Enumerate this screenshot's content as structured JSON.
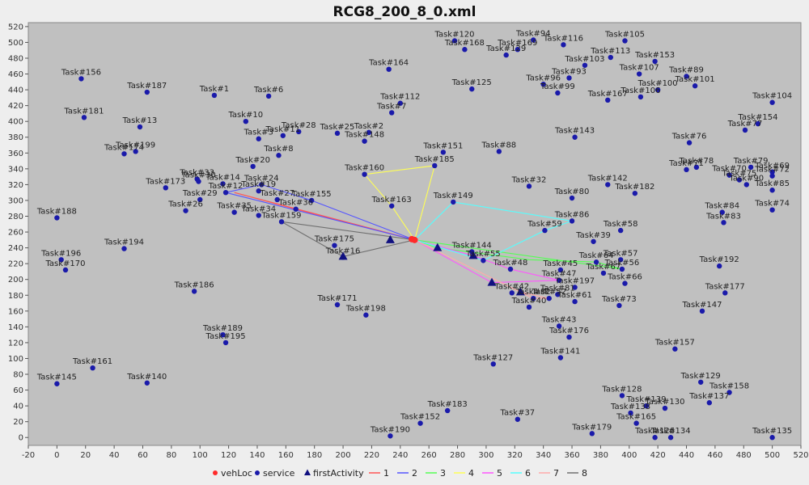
{
  "chart_data": {
    "type": "scatter",
    "title": "RCG8_200_8_0.xml",
    "xlabel": "",
    "ylabel": "",
    "xlim": [
      -20,
      520
    ],
    "ylim": [
      -10,
      525
    ],
    "x_ticks": [
      -20,
      0,
      20,
      40,
      60,
      80,
      100,
      120,
      140,
      160,
      180,
      200,
      220,
      240,
      260,
      280,
      300,
      320,
      340,
      360,
      380,
      400,
      420,
      440,
      460,
      480,
      500,
      520
    ],
    "y_ticks": [
      0,
      20,
      40,
      60,
      80,
      100,
      120,
      140,
      160,
      180,
      200,
      220,
      240,
      260,
      280,
      300,
      320,
      340,
      360,
      380,
      400,
      420,
      440,
      460,
      480,
      500,
      520
    ],
    "grid": false,
    "legend_position": "bottom",
    "background": "#c0c0c0",
    "colors": {
      "vehLoc": "#ff2a2a",
      "service": "#1a1aaa",
      "firstActivity": "#101080",
      "1": "#ff5555",
      "2": "#5555ff",
      "3": "#55ff55",
      "4": "#ffff55",
      "5": "#ff55ff",
      "6": "#55ffff",
      "7": "#ffaaaa",
      "8": "#707070"
    },
    "legend": [
      {
        "label": "vehLoc",
        "marker": "circle-red"
      },
      {
        "label": "service",
        "marker": "circle-blue"
      },
      {
        "label": "firstActivity",
        "marker": "triangle"
      },
      {
        "label": "1",
        "marker": "line"
      },
      {
        "label": "2",
        "marker": "line"
      },
      {
        "label": "3",
        "marker": "line"
      },
      {
        "label": "4",
        "marker": "line"
      },
      {
        "label": "5",
        "marker": "line"
      },
      {
        "label": "6",
        "marker": "line"
      },
      {
        "label": "7",
        "marker": "line"
      },
      {
        "label": "8",
        "marker": "line"
      }
    ],
    "vehLoc": [
      [
        248,
        251
      ],
      [
        250,
        250
      ]
    ],
    "firstActivity": [
      [
        233,
        250
      ],
      [
        266,
        240
      ],
      [
        291,
        230
      ],
      [
        304,
        196
      ],
      [
        324,
        184
      ],
      [
        200,
        229
      ]
    ],
    "services": [
      {
        "label": "Task#120",
        "x": 278,
        "y": 502
      },
      {
        "label": "Task#94",
        "x": 333,
        "y": 503
      },
      {
        "label": "Task#116",
        "x": 354,
        "y": 497
      },
      {
        "label": "Task#105",
        "x": 397,
        "y": 502
      },
      {
        "label": "Task#168",
        "x": 285,
        "y": 491
      },
      {
        "label": "Task#169",
        "x": 322,
        "y": 491
      },
      {
        "label": "Task#129",
        "x": 314,
        "y": 484
      },
      {
        "label": "Task#113",
        "x": 387,
        "y": 481
      },
      {
        "label": "Task#153",
        "x": 418,
        "y": 476
      },
      {
        "label": "Task#164",
        "x": 232,
        "y": 466
      },
      {
        "label": "Task#103",
        "x": 369,
        "y": 471
      },
      {
        "label": "Task#107",
        "x": 407,
        "y": 460
      },
      {
        "label": "Task#89",
        "x": 440,
        "y": 457
      },
      {
        "label": "Task#93",
        "x": 358,
        "y": 455
      },
      {
        "label": "Task#96",
        "x": 340,
        "y": 447
      },
      {
        "label": "Task#101",
        "x": 446,
        "y": 445
      },
      {
        "label": "Task#125",
        "x": 290,
        "y": 441
      },
      {
        "label": "Task#99",
        "x": 350,
        "y": 436
      },
      {
        "label": "Task#100",
        "x": 420,
        "y": 440
      },
      {
        "label": "Task#106",
        "x": 408,
        "y": 431
      },
      {
        "label": "Task#167",
        "x": 385,
        "y": 427
      },
      {
        "label": "Task#104",
        "x": 500,
        "y": 424
      },
      {
        "label": "Task#156",
        "x": 17,
        "y": 454
      },
      {
        "label": "Task#187",
        "x": 63,
        "y": 437
      },
      {
        "label": "Task#1",
        "x": 110,
        "y": 433
      },
      {
        "label": "Task#6",
        "x": 148,
        "y": 432
      },
      {
        "label": "Task#112",
        "x": 240,
        "y": 423
      },
      {
        "label": "Task#7",
        "x": 234,
        "y": 411
      },
      {
        "label": "Task#181",
        "x": 19,
        "y": 405
      },
      {
        "label": "Task#10",
        "x": 132,
        "y": 400
      },
      {
        "label": "Task#154",
        "x": 490,
        "y": 397
      },
      {
        "label": "Task#13",
        "x": 58,
        "y": 393
      },
      {
        "label": "Task#77",
        "x": 481,
        "y": 389
      },
      {
        "label": "Task#2",
        "x": 218,
        "y": 386
      },
      {
        "label": "Task#28",
        "x": 169,
        "y": 387
      },
      {
        "label": "Task#25",
        "x": 196,
        "y": 385
      },
      {
        "label": "Task#11",
        "x": 158,
        "y": 382
      },
      {
        "label": "Task#143",
        "x": 362,
        "y": 380
      },
      {
        "label": "Task#3",
        "x": 141,
        "y": 378
      },
      {
        "label": "Task#148",
        "x": 215,
        "y": 375
      },
      {
        "label": "Task#76",
        "x": 442,
        "y": 373
      },
      {
        "label": "Task#199",
        "x": 55,
        "y": 362
      },
      {
        "label": "Task#174",
        "x": 47,
        "y": 359
      },
      {
        "label": "Task#151",
        "x": 270,
        "y": 361
      },
      {
        "label": "Task#88",
        "x": 309,
        "y": 362
      },
      {
        "label": "Task#8",
        "x": 155,
        "y": 357
      },
      {
        "label": "Task#20",
        "x": 137,
        "y": 343
      },
      {
        "label": "Task#185",
        "x": 264,
        "y": 344
      },
      {
        "label": "Task#78",
        "x": 447,
        "y": 342
      },
      {
        "label": "Task#79",
        "x": 485,
        "y": 342
      },
      {
        "label": "Task#71",
        "x": 440,
        "y": 339
      },
      {
        "label": "Task#70",
        "x": 470,
        "y": 332
      },
      {
        "label": "Task#69",
        "x": 500,
        "y": 336
      },
      {
        "label": "Task#160",
        "x": 215,
        "y": 333
      },
      {
        "label": "Task#33",
        "x": 98,
        "y": 327
      },
      {
        "label": "Task#72",
        "x": 500,
        "y": 331
      },
      {
        "label": "Task#75",
        "x": 477,
        "y": 326
      },
      {
        "label": "Task#14",
        "x": 116,
        "y": 321
      },
      {
        "label": "Task#24",
        "x": 143,
        "y": 320
      },
      {
        "label": "Task#30",
        "x": 99,
        "y": 324
      },
      {
        "label": "Task#173",
        "x": 76,
        "y": 316
      },
      {
        "label": "Task#32",
        "x": 330,
        "y": 318
      },
      {
        "label": "Task#142",
        "x": 385,
        "y": 320
      },
      {
        "label": "Task#90",
        "x": 482,
        "y": 320
      },
      {
        "label": "Task#85",
        "x": 500,
        "y": 313
      },
      {
        "label": "Task#12",
        "x": 118,
        "y": 310
      },
      {
        "label": "Task#19",
        "x": 141,
        "y": 312
      },
      {
        "label": "Task#182",
        "x": 404,
        "y": 309
      },
      {
        "label": "Task#155",
        "x": 178,
        "y": 300
      },
      {
        "label": "Task#27",
        "x": 154,
        "y": 301
      },
      {
        "label": "Task#29",
        "x": 100,
        "y": 301
      },
      {
        "label": "Task#163",
        "x": 234,
        "y": 293
      },
      {
        "label": "Task#80",
        "x": 360,
        "y": 303
      },
      {
        "label": "Task#26",
        "x": 90,
        "y": 287
      },
      {
        "label": "Task#35",
        "x": 124,
        "y": 285
      },
      {
        "label": "Task#34",
        "x": 141,
        "y": 281
      },
      {
        "label": "Task#36",
        "x": 167,
        "y": 289
      },
      {
        "label": "Task#149",
        "x": 277,
        "y": 298
      },
      {
        "label": "Task#84",
        "x": 465,
        "y": 285
      },
      {
        "label": "Task#74",
        "x": 500,
        "y": 288
      },
      {
        "label": "Task#188",
        "x": 0,
        "y": 278
      },
      {
        "label": "Task#159",
        "x": 157,
        "y": 273
      },
      {
        "label": "Task#86",
        "x": 360,
        "y": 274
      },
      {
        "label": "Task#83",
        "x": 466,
        "y": 272
      },
      {
        "label": "Task#58",
        "x": 394,
        "y": 262
      },
      {
        "label": "Task#59",
        "x": 341,
        "y": 262
      },
      {
        "label": "Task#39",
        "x": 375,
        "y": 248
      },
      {
        "label": "Task#175",
        "x": 194,
        "y": 243
      },
      {
        "label": "Task#16",
        "x": 200,
        "y": 228
      },
      {
        "label": "Task#194",
        "x": 47,
        "y": 239
      },
      {
        "label": "Task#144",
        "x": 290,
        "y": 235
      },
      {
        "label": "Task#196",
        "x": 3,
        "y": 225
      },
      {
        "label": "Task#170",
        "x": 6,
        "y": 212
      },
      {
        "label": "Task#55",
        "x": 298,
        "y": 224
      },
      {
        "label": "Task#48",
        "x": 317,
        "y": 213
      },
      {
        "label": "Task#192",
        "x": 463,
        "y": 217
      },
      {
        "label": "Task#57",
        "x": 394,
        "y": 225
      },
      {
        "label": "Task#64",
        "x": 377,
        "y": 222
      },
      {
        "label": "Task#45",
        "x": 352,
        "y": 212
      },
      {
        "label": "Task#56",
        "x": 395,
        "y": 213
      },
      {
        "label": "Task#67",
        "x": 382,
        "y": 208
      },
      {
        "label": "Task#47",
        "x": 351,
        "y": 199
      },
      {
        "label": "Task#66",
        "x": 397,
        "y": 195
      },
      {
        "label": "Task#197",
        "x": 362,
        "y": 190
      },
      {
        "label": "Task#186",
        "x": 96,
        "y": 185
      },
      {
        "label": "Task#177",
        "x": 467,
        "y": 183
      },
      {
        "label": "Task#42",
        "x": 318,
        "y": 183
      },
      {
        "label": "Task#81",
        "x": 350,
        "y": 181
      },
      {
        "label": "Task#171",
        "x": 196,
        "y": 168
      },
      {
        "label": "Task#82",
        "x": 333,
        "y": 176
      },
      {
        "label": "Task#52",
        "x": 344,
        "y": 176
      },
      {
        "label": "Task#61",
        "x": 362,
        "y": 172
      },
      {
        "label": "Task#73",
        "x": 393,
        "y": 167
      },
      {
        "label": "Task#40",
        "x": 330,
        "y": 165
      },
      {
        "label": "Task#147",
        "x": 451,
        "y": 160
      },
      {
        "label": "Task#198",
        "x": 216,
        "y": 155
      },
      {
        "label": "Task#43",
        "x": 351,
        "y": 141
      },
      {
        "label": "Task#189",
        "x": 116,
        "y": 130
      },
      {
        "label": "Task#176",
        "x": 358,
        "y": 127
      },
      {
        "label": "Task#195",
        "x": 118,
        "y": 120
      },
      {
        "label": "Task#157",
        "x": 432,
        "y": 112
      },
      {
        "label": "Task#141",
        "x": 352,
        "y": 101
      },
      {
        "label": "Task#127",
        "x": 305,
        "y": 93
      },
      {
        "label": "Task#161",
        "x": 25,
        "y": 88
      },
      {
        "label": "Task#145",
        "x": 0,
        "y": 68
      },
      {
        "label": "Task#140",
        "x": 63,
        "y": 69
      },
      {
        "label": "Task#129",
        "x": 450,
        "y": 70
      },
      {
        "label": "Task#158",
        "x": 470,
        "y": 57
      },
      {
        "label": "Task#128",
        "x": 395,
        "y": 53
      },
      {
        "label": "Task#137",
        "x": 456,
        "y": 44
      },
      {
        "label": "Task#139",
        "x": 412,
        "y": 40
      },
      {
        "label": "Task#183",
        "x": 273,
        "y": 34
      },
      {
        "label": "Task#130",
        "x": 425,
        "y": 37
      },
      {
        "label": "Task#138",
        "x": 401,
        "y": 31
      },
      {
        "label": "Task#37",
        "x": 322,
        "y": 23
      },
      {
        "label": "Task#152",
        "x": 254,
        "y": 18
      },
      {
        "label": "Task#165",
        "x": 405,
        "y": 18
      },
      {
        "label": "Task#179",
        "x": 374,
        "y": 5
      },
      {
        "label": "Task#190",
        "x": 233,
        "y": 2
      },
      {
        "label": "Task#134",
        "x": 429,
        "y": 0
      },
      {
        "label": "Task#126",
        "x": 418,
        "y": 0
      },
      {
        "label": "Task#135",
        "x": 500,
        "y": 0
      }
    ],
    "routes": [
      {
        "name": "1",
        "points": [
          [
            250,
            250
          ],
          [
            167,
            289
          ],
          [
            124,
            310
          ],
          [
            250,
            250
          ]
        ]
      },
      {
        "name": "2",
        "points": [
          [
            250,
            250
          ],
          [
            178,
            300
          ],
          [
            143,
            320
          ],
          [
            118,
            310
          ],
          [
            250,
            250
          ]
        ]
      },
      {
        "name": "3",
        "points": [
          [
            250,
            250
          ],
          [
            266,
            240
          ],
          [
            330,
            225
          ],
          [
            377,
            222
          ],
          [
            395,
            213
          ],
          [
            250,
            250
          ]
        ]
      },
      {
        "name": "4",
        "points": [
          [
            250,
            250
          ],
          [
            234,
            293
          ],
          [
            215,
            333
          ],
          [
            264,
            344
          ],
          [
            250,
            250
          ]
        ]
      },
      {
        "name": "5",
        "points": [
          [
            250,
            250
          ],
          [
            291,
            230
          ],
          [
            317,
            213
          ],
          [
            351,
            199
          ],
          [
            304,
            196
          ],
          [
            250,
            250
          ]
        ]
      },
      {
        "name": "6",
        "points": [
          [
            250,
            250
          ],
          [
            277,
            298
          ],
          [
            360,
            274
          ],
          [
            341,
            262
          ],
          [
            298,
            224
          ],
          [
            250,
            250
          ]
        ]
      },
      {
        "name": "7",
        "points": [
          [
            250,
            250
          ],
          [
            324,
            184
          ],
          [
            344,
            176
          ],
          [
            333,
            176
          ],
          [
            250,
            250
          ]
        ]
      },
      {
        "name": "8",
        "points": [
          [
            250,
            250
          ],
          [
            157,
            273
          ],
          [
            200,
            229
          ],
          [
            250,
            250
          ]
        ]
      }
    ]
  }
}
